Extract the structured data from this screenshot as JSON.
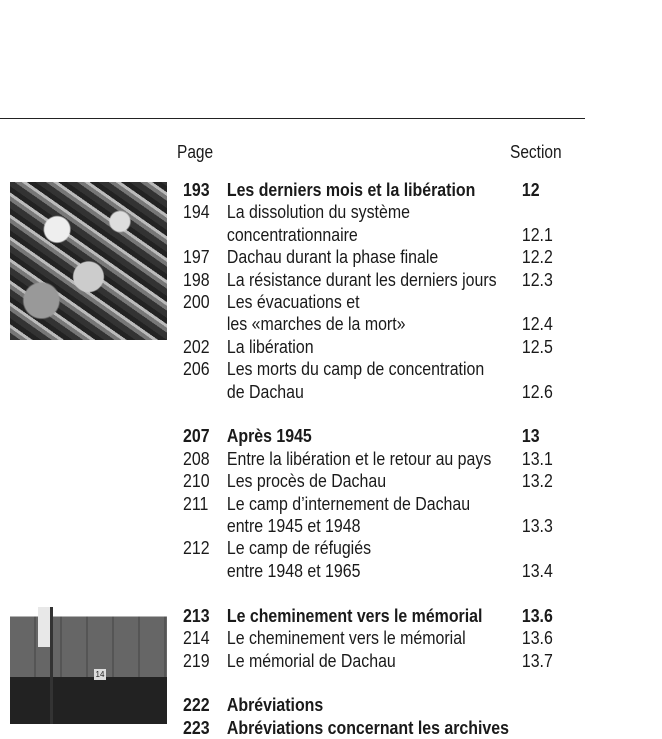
{
  "header": {
    "page_label": "Page",
    "section_label": "Section"
  },
  "toc": [
    {
      "page": "193",
      "lines": [
        "Les derniers mois et la libération"
      ],
      "section": "12",
      "bold": true
    },
    {
      "page": "194",
      "lines": [
        "La dissolution du système",
        "concentrationnaire"
      ],
      "section": "12.1"
    },
    {
      "page": "197",
      "lines": [
        "Dachau durant la phase finale"
      ],
      "section": "12.2"
    },
    {
      "page": "198",
      "lines": [
        "La résistance durant les derniers jours"
      ],
      "section": "12.3"
    },
    {
      "page": "200",
      "lines": [
        "Les évacuations et",
        "les «marches de la mort»"
      ],
      "section": "12.4"
    },
    {
      "page": "202",
      "lines": [
        "La libération"
      ],
      "section": "12.5"
    },
    {
      "page": "206",
      "lines": [
        "Les morts du camp de concentration",
        "de Dachau"
      ],
      "section": "12.6"
    },
    {
      "page": "207",
      "lines": [
        "Après 1945"
      ],
      "section": "13",
      "bold": true
    },
    {
      "page": "208",
      "lines": [
        "Entre la libération et le retour au pays"
      ],
      "section": "13.1"
    },
    {
      "page": "210",
      "lines": [
        "Les procès de Dachau"
      ],
      "section": "13.2"
    },
    {
      "page": "211",
      "lines": [
        "Le camp d’internement de Dachau",
        "entre 1945 et 1948"
      ],
      "section": "13.3"
    },
    {
      "page": "212",
      "lines": [
        "Le camp de réfugiés",
        "entre 1948 et 1965"
      ],
      "section": "13.4"
    },
    {
      "page": "213",
      "lines": [
        "Le cheminement vers le mémorial"
      ],
      "section": "13.6",
      "bold": true
    },
    {
      "page": "214",
      "lines": [
        "Le cheminement vers le mémorial"
      ],
      "section": "13.6"
    },
    {
      "page": "219",
      "lines": [
        "Le mémorial de Dachau"
      ],
      "section": "13.7"
    },
    {
      "page": "222",
      "lines": [
        "Abréviations"
      ],
      "section": "",
      "bold": true
    },
    {
      "page": "223",
      "lines": [
        "Abréviations concernant les archives"
      ],
      "section": "",
      "bold": true
    }
  ],
  "photo2": {
    "door_number": "14"
  }
}
